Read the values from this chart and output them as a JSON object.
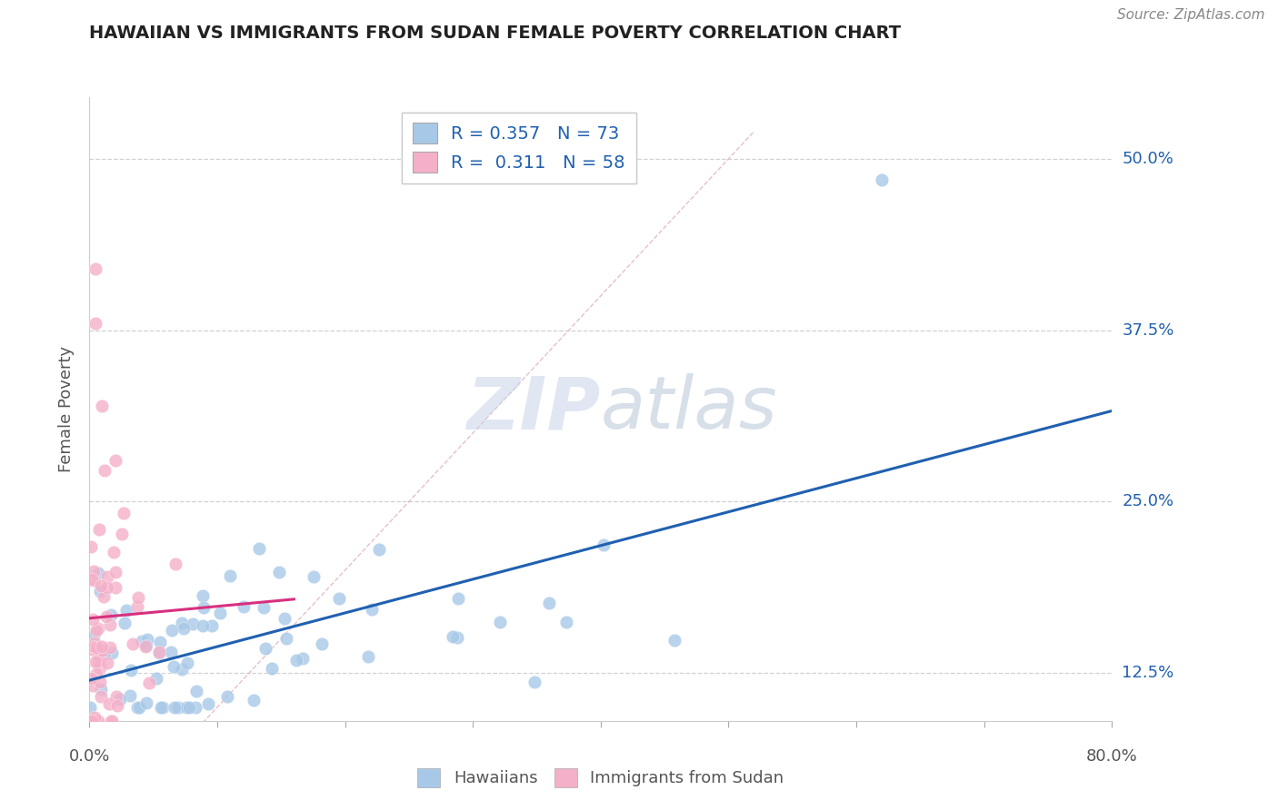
{
  "title": "HAWAIIAN VS IMMIGRANTS FROM SUDAN FEMALE POVERTY CORRELATION CHART",
  "source": "Source: ZipAtlas.com",
  "ylabel": "Female Poverty",
  "xlim": [
    0.0,
    0.8
  ],
  "ylim": [
    0.09,
    0.545
  ],
  "yticks": [
    0.125,
    0.25,
    0.375,
    0.5
  ],
  "yticklabels": [
    "12.5%",
    "25.0%",
    "37.5%",
    "50.0%"
  ],
  "legend_r1": "0.357",
  "legend_n1": "73",
  "legend_r2": "0.311",
  "legend_n2": "58",
  "blue_color": "#a8c8e8",
  "pink_color": "#f4b0c8",
  "blue_line_color": "#2060b0",
  "pink_line_color": "#d83080",
  "diag_color": "#e0b0c0",
  "watermark_color": "#c8d4e8",
  "background_color": "#ffffff",
  "grid_color": "#cccccc",
  "title_color": "#222222",
  "label_color": "#555555",
  "tick_color": "#2060b0",
  "source_color": "#888888"
}
